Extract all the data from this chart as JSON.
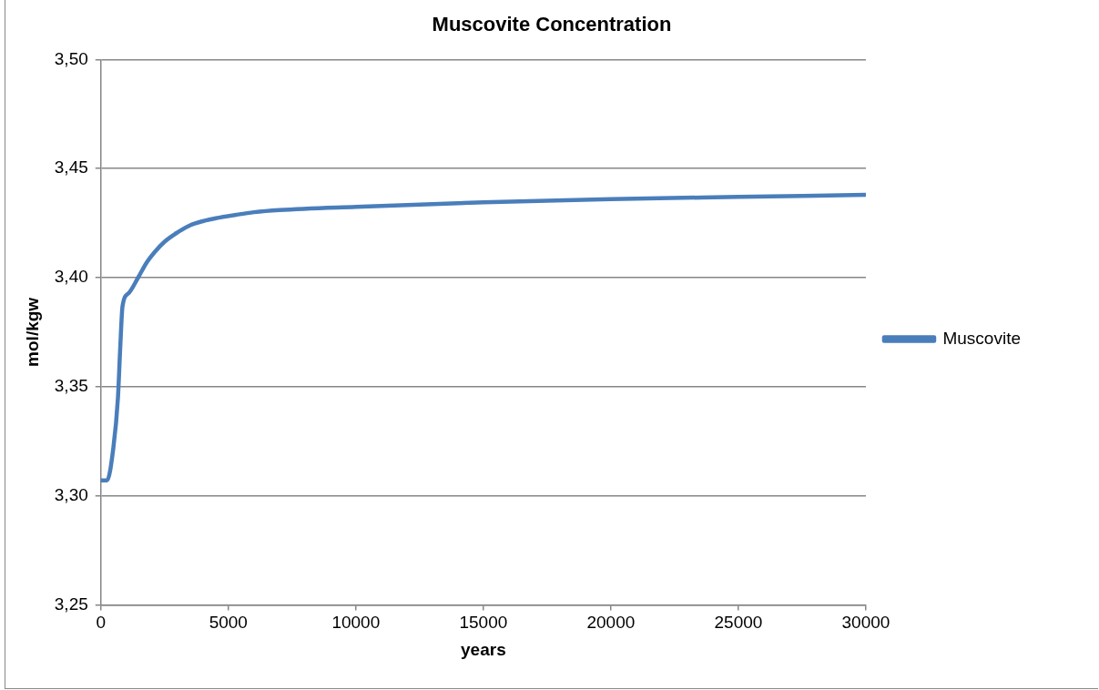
{
  "chart_data": {
    "type": "line",
    "title": "Muscovite Concentration",
    "xlabel": "years",
    "ylabel": "mol/kgw",
    "series": [
      {
        "name": "Muscovite",
        "color": "#4a7ebb",
        "x": [
          0,
          240,
          490,
          670,
          760,
          850,
          1100,
          1460,
          1800,
          2100,
          2500,
          3000,
          3500,
          4030,
          4500,
          5300,
          6000,
          7000,
          10000,
          15000,
          20000,
          25000,
          30000
        ],
        "values": [
          3.307,
          3.307,
          3.322,
          3.345,
          3.368,
          3.387,
          3.393,
          3.4,
          3.407,
          3.4116,
          3.4165,
          3.4207,
          3.424,
          3.426,
          3.4272,
          3.4288,
          3.43,
          3.431,
          3.4325,
          3.4345,
          3.436,
          3.437,
          3.438
        ]
      }
    ],
    "xlim": [
      0,
      30000
    ],
    "xticks": [
      0,
      5000,
      10000,
      15000,
      20000,
      25000,
      30000
    ],
    "ylim": [
      3.25,
      3.5
    ],
    "yticks": [
      {
        "value": 3.25,
        "label": "3,25"
      },
      {
        "value": 3.3,
        "label": "3,30"
      },
      {
        "value": 3.35,
        "label": "3,35"
      },
      {
        "value": 3.4,
        "label": "3,40"
      },
      {
        "value": 3.45,
        "label": "3,45"
      },
      {
        "value": 3.5,
        "label": "3,50"
      }
    ],
    "grid": "y",
    "legend": "right",
    "marker": "none",
    "line_style": "solid"
  }
}
